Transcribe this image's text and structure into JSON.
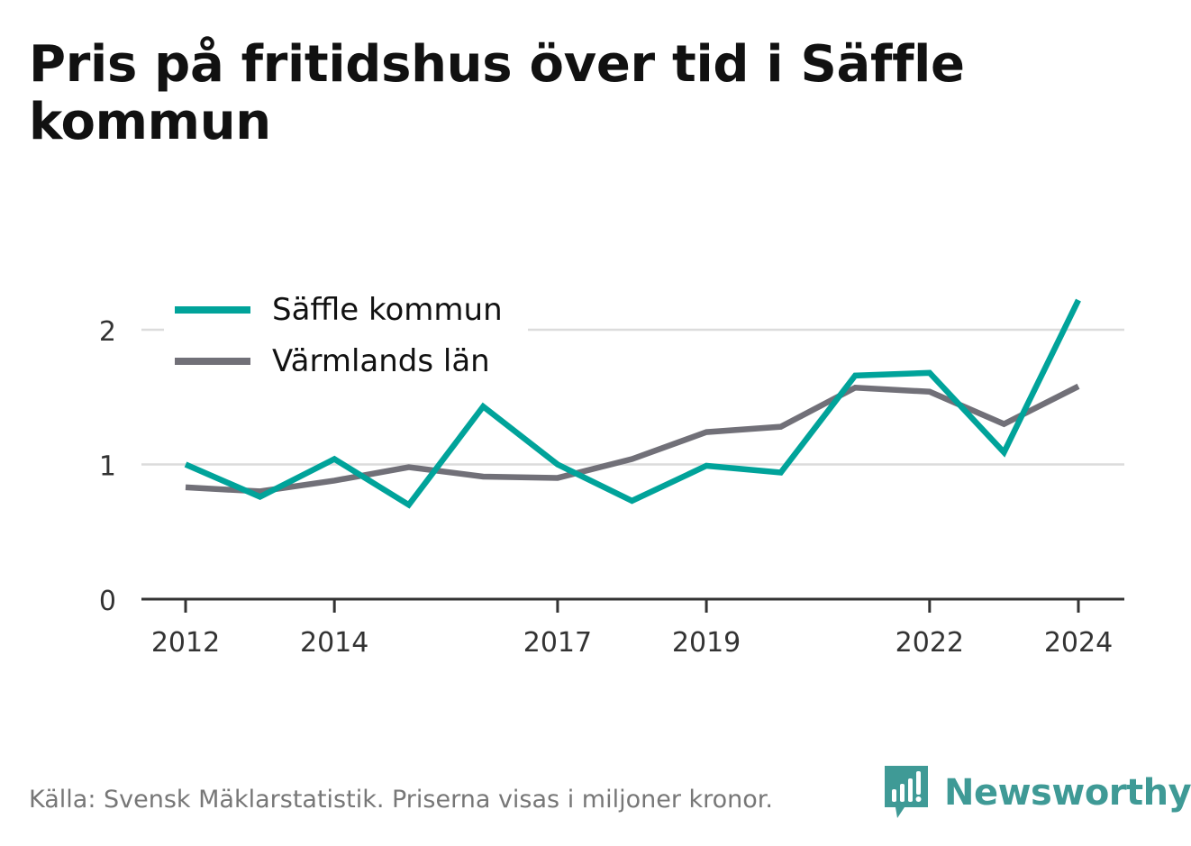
{
  "title": "Pris på fritidshus över tid i Säffle kommun",
  "footer": {
    "source": "Källa: Svensk Mäklarstatistik. Priserna visas i miljoner kronor."
  },
  "brand": {
    "name": "Newsworthy",
    "icon": "bar-chart-speech-bubble-icon",
    "color": "#3f9a96"
  },
  "chart_data": {
    "type": "line",
    "title": "Pris på fritidshus över tid i Säffle kommun",
    "xlabel": "",
    "ylabel": "",
    "x": [
      2012,
      2013,
      2014,
      2015,
      2016,
      2017,
      2018,
      2019,
      2020,
      2021,
      2022,
      2023,
      2024
    ],
    "xticks": [
      2012,
      2014,
      2017,
      2019,
      2022,
      2024
    ],
    "yticks": [
      0,
      1,
      2
    ],
    "ylim": [
      0,
      2.3
    ],
    "grid": true,
    "legend": "top-left",
    "series": [
      {
        "name": "Säffle kommun",
        "color": "#00a39a",
        "values": [
          1.0,
          0.76,
          1.04,
          0.7,
          1.43,
          1.0,
          0.73,
          0.99,
          0.94,
          1.66,
          1.68,
          1.09,
          2.22
        ]
      },
      {
        "name": "Värmlands län",
        "color": "#717078",
        "values": [
          0.83,
          0.8,
          0.88,
          0.98,
          0.91,
          0.9,
          1.04,
          1.24,
          1.28,
          1.57,
          1.54,
          1.3,
          1.58
        ]
      }
    ]
  }
}
